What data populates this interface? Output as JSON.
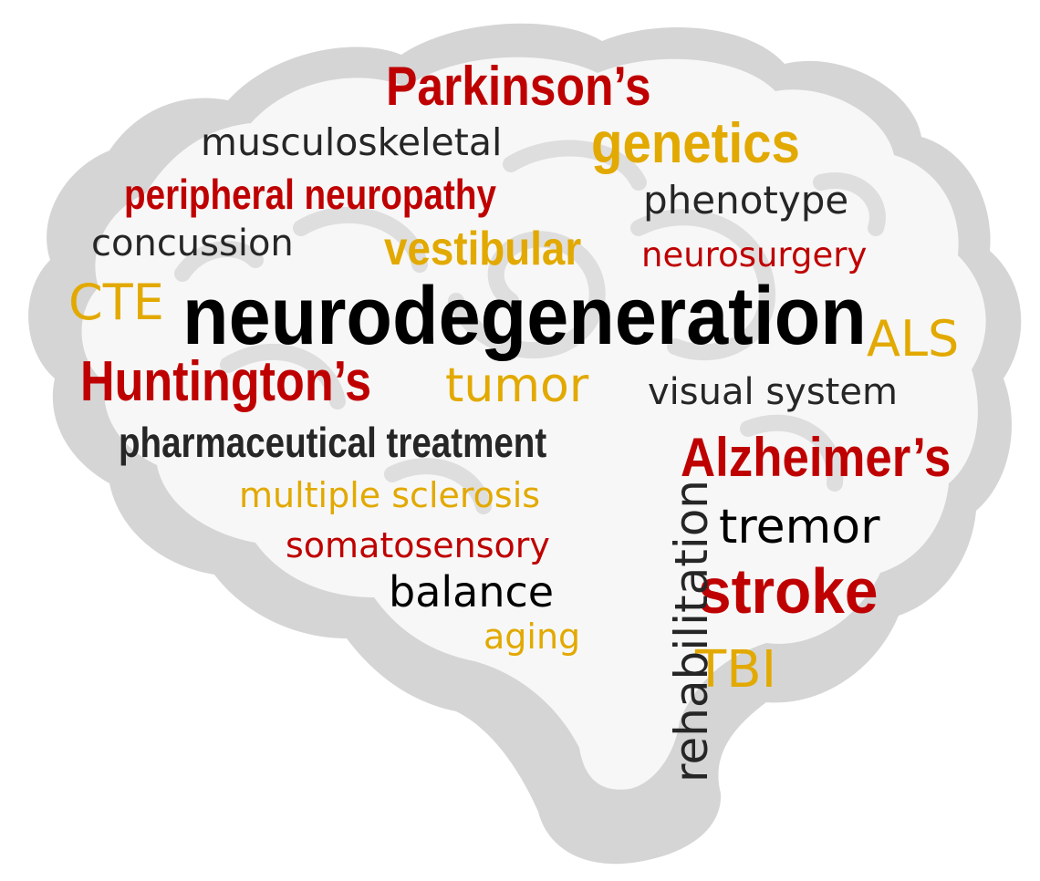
{
  "colors": {
    "red": "#bf0000",
    "gold": "#e2a900",
    "dark": "#262626",
    "black": "#000000",
    "brain_fill": "#d5d5d5",
    "brain_inner": "#f7f7f7",
    "brain_swirl": "#dedede"
  },
  "words": {
    "parkinsons": "Parkinson’s",
    "musculoskeletal": "musculoskeletal",
    "genetics": "genetics",
    "peripheral_neuropathy": "peripheral neuropathy",
    "phenotype": "phenotype",
    "concussion": "concussion",
    "vestibular": "vestibular",
    "neurosurgery": "neurosurgery",
    "cte": "CTE",
    "neurodegeneration": "neurodegeneration",
    "als": "ALS",
    "huntingtons": "Huntington’s",
    "tumor": "tumor",
    "visual_system": "visual system",
    "pharmaceutical_treatment": "pharmaceutical treatment",
    "alzheimers": "Alzheimer’s",
    "multiple_sclerosis": "multiple sclerosis",
    "tremor": "tremor",
    "somatosensory": "somatosensory",
    "stroke": "stroke",
    "balance": "balance",
    "aging": "aging",
    "tbi": "TBI",
    "rehabilitation": "rehabilitation"
  }
}
